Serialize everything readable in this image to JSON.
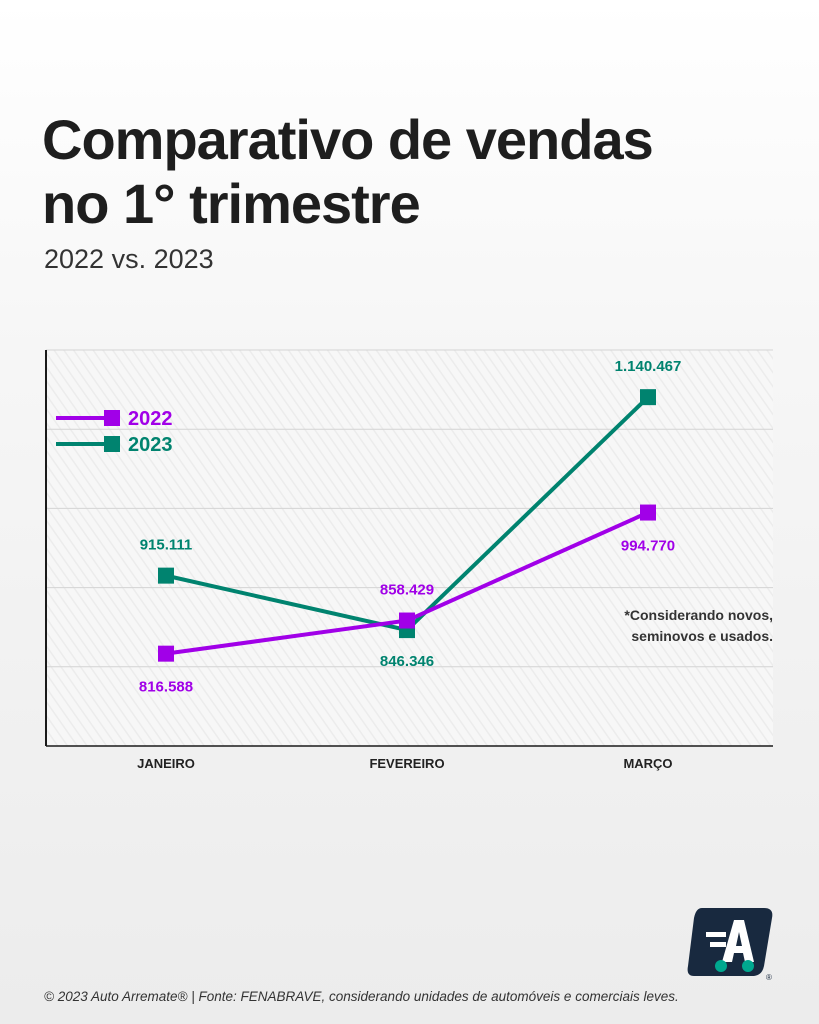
{
  "header": {
    "title_line1": "Comparativo de vendas",
    "title_line2": "no 1° trimestre",
    "subtitle": "2022 vs. 2023"
  },
  "chart_data": {
    "type": "line",
    "categories": [
      "JANEIRO",
      "FEVEREIRO",
      "MARÇO"
    ],
    "series": [
      {
        "name": "2022",
        "values": [
          816588,
          858429,
          994770
        ],
        "labels": [
          "816.588",
          "858.429",
          "994.770"
        ],
        "color": "#a100e8"
      },
      {
        "name": "2023",
        "values": [
          915111,
          846346,
          1140467
        ],
        "labels": [
          "915.111",
          "846.346",
          "1.140.467"
        ],
        "color": "#00836f"
      }
    ],
    "ylim": [
      700000,
      1200000
    ],
    "grid": true,
    "legend": "top-left",
    "annotation": [
      "*Considerando novos,",
      "seminovos e usados."
    ]
  },
  "footer": {
    "text": "© 2023 Auto Arremate®  | Fonte: FENABRAVE, considerando unidades de automóveis e comerciais leves."
  },
  "logo": {
    "name": "auto-arremate-logo",
    "color": "#18293f",
    "accent": "#00a88f"
  }
}
